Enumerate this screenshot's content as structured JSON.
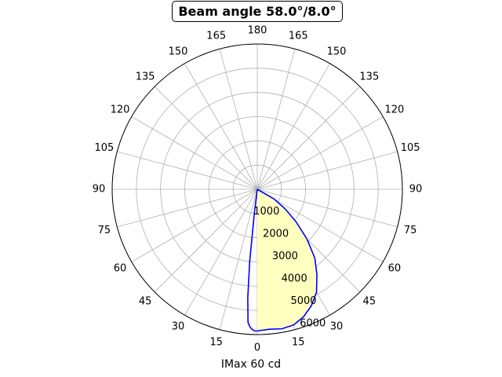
{
  "chart_data": {
    "type": "polar",
    "title": "Beam angle 58.0°/8.0°",
    "xlabel": "IMax 60 cd",
    "angle_ticks": [
      "180",
      "165",
      "150",
      "135",
      "120",
      "105",
      "90",
      "75",
      "60",
      "45",
      "30",
      "15",
      "0",
      "15",
      "30",
      "45",
      "60",
      "75",
      "90",
      "105",
      "120",
      "135",
      "150",
      "165"
    ],
    "radial_ticks": [
      "1000",
      "2000",
      "3000",
      "4000",
      "5000",
      "6000"
    ],
    "rlim": [
      0,
      6000
    ],
    "grid": true,
    "series": [
      {
        "plane": "wide",
        "color": "#0000ff",
        "fill": "#ffffc0",
        "angles": [
          0,
          5,
          10,
          15,
          20,
          25,
          30,
          35,
          40,
          45,
          50,
          55,
          60,
          65
        ],
        "values": [
          5850,
          5800,
          5850,
          5800,
          5600,
          5300,
          4900,
          4300,
          3700,
          2900,
          2100,
          1400,
          800,
          0
        ]
      },
      {
        "plane": "narrow",
        "color": "#0000ff",
        "angles": [
          0,
          -1,
          -2,
          -3,
          -4,
          -5,
          -6,
          -7,
          -8
        ],
        "values": [
          5850,
          5850,
          5800,
          5700,
          5500,
          4500,
          3000,
          1000,
          0
        ]
      }
    ]
  }
}
